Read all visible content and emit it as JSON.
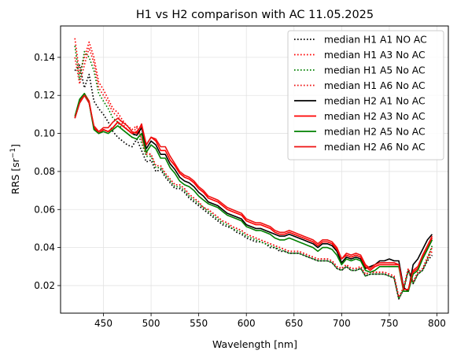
{
  "chart_data": {
    "type": "line",
    "title": "H1 vs H2 comparison with AC 11.05.2025",
    "xlabel": "Wavelength [nm]",
    "ylabel_main": "RRS [sr",
    "ylabel_sup": "−1",
    "ylabel_close": "]",
    "xlim": [
      405,
      812
    ],
    "ylim": [
      0.0055,
      0.1565
    ],
    "xticks": [
      450,
      500,
      550,
      600,
      650,
      700,
      750,
      800
    ],
    "yticks": [
      0.02,
      0.04,
      0.06,
      0.08,
      0.1,
      0.12,
      0.14
    ],
    "ytick_labels": [
      "0.02",
      "0.04",
      "0.06",
      "0.08",
      "0.10",
      "0.12",
      "0.14"
    ],
    "grid": true,
    "legend_position": "top-right",
    "x": [
      420,
      425,
      430,
      435,
      440,
      445,
      450,
      455,
      460,
      465,
      470,
      475,
      480,
      485,
      490,
      495,
      500,
      505,
      510,
      515,
      520,
      525,
      530,
      535,
      540,
      545,
      550,
      555,
      560,
      565,
      570,
      575,
      580,
      585,
      590,
      595,
      600,
      605,
      610,
      615,
      620,
      625,
      630,
      635,
      640,
      645,
      650,
      655,
      660,
      665,
      670,
      675,
      680,
      685,
      690,
      695,
      700,
      705,
      710,
      715,
      720,
      725,
      730,
      735,
      740,
      745,
      750,
      755,
      760,
      765,
      770,
      775,
      780,
      785,
      790,
      795
    ],
    "series": [
      {
        "name": "median H1 A1 NO AC",
        "color": "#000000",
        "dash": "dotted",
        "values": [
          0.133,
          0.136,
          0.124,
          0.131,
          0.117,
          0.113,
          0.11,
          0.106,
          0.101,
          0.098,
          0.096,
          0.094,
          0.093,
          0.097,
          0.091,
          0.085,
          0.086,
          0.08,
          0.081,
          0.077,
          0.074,
          0.071,
          0.071,
          0.069,
          0.066,
          0.064,
          0.062,
          0.06,
          0.058,
          0.056,
          0.054,
          0.052,
          0.051,
          0.05,
          0.048,
          0.047,
          0.045,
          0.044,
          0.043,
          0.043,
          0.042,
          0.04,
          0.04,
          0.038,
          0.038,
          0.037,
          0.037,
          0.037,
          0.036,
          0.035,
          0.034,
          0.033,
          0.033,
          0.033,
          0.032,
          0.029,
          0.028,
          0.03,
          0.028,
          0.028,
          0.029,
          0.025,
          0.026,
          0.026,
          0.026,
          0.026,
          0.025,
          0.024,
          0.013,
          0.018,
          0.028,
          0.021,
          0.026,
          0.028,
          0.033,
          0.036
        ]
      },
      {
        "name": "median H1 A3 No AC",
        "color": "#ff0000",
        "dash": "dotted",
        "values": [
          0.15,
          0.131,
          0.14,
          0.148,
          0.14,
          0.127,
          0.123,
          0.118,
          0.113,
          0.111,
          0.107,
          0.104,
          0.102,
          0.104,
          0.098,
          0.09,
          0.089,
          0.083,
          0.083,
          0.079,
          0.076,
          0.073,
          0.073,
          0.071,
          0.068,
          0.066,
          0.064,
          0.061,
          0.06,
          0.058,
          0.056,
          0.054,
          0.053,
          0.051,
          0.05,
          0.049,
          0.047,
          0.046,
          0.045,
          0.044,
          0.043,
          0.042,
          0.041,
          0.04,
          0.039,
          0.038,
          0.038,
          0.038,
          0.037,
          0.036,
          0.035,
          0.034,
          0.034,
          0.034,
          0.033,
          0.03,
          0.029,
          0.031,
          0.029,
          0.029,
          0.03,
          0.026,
          0.027,
          0.027,
          0.027,
          0.027,
          0.026,
          0.025,
          0.014,
          0.019,
          0.029,
          0.022,
          0.027,
          0.029,
          0.034,
          0.038
        ]
      },
      {
        "name": "median H1 A5 No AC",
        "color": "#008000",
        "dash": "dotted",
        "values": [
          0.146,
          0.128,
          0.143,
          0.14,
          0.133,
          0.121,
          0.117,
          0.113,
          0.108,
          0.106,
          0.102,
          0.1,
          0.098,
          0.101,
          0.095,
          0.088,
          0.088,
          0.082,
          0.082,
          0.078,
          0.075,
          0.072,
          0.072,
          0.07,
          0.067,
          0.065,
          0.063,
          0.061,
          0.059,
          0.057,
          0.055,
          0.053,
          0.052,
          0.05,
          0.049,
          0.048,
          0.046,
          0.045,
          0.044,
          0.043,
          0.042,
          0.041,
          0.04,
          0.039,
          0.038,
          0.037,
          0.037,
          0.037,
          0.036,
          0.035,
          0.034,
          0.033,
          0.033,
          0.033,
          0.032,
          0.029,
          0.028,
          0.03,
          0.028,
          0.028,
          0.029,
          0.025,
          0.026,
          0.026,
          0.026,
          0.026,
          0.025,
          0.024,
          0.013,
          0.018,
          0.028,
          0.021,
          0.026,
          0.028,
          0.034,
          0.041
        ]
      },
      {
        "name": "median H1 A6 No AC",
        "color": "#ee1111",
        "dash": "dotted",
        "values": [
          0.14,
          0.126,
          0.136,
          0.145,
          0.137,
          0.124,
          0.12,
          0.116,
          0.111,
          0.109,
          0.105,
          0.102,
          0.1,
          0.103,
          0.097,
          0.089,
          0.089,
          0.083,
          0.083,
          0.079,
          0.076,
          0.073,
          0.073,
          0.071,
          0.068,
          0.066,
          0.064,
          0.061,
          0.06,
          0.058,
          0.056,
          0.054,
          0.053,
          0.051,
          0.05,
          0.049,
          0.047,
          0.046,
          0.045,
          0.044,
          0.043,
          0.042,
          0.041,
          0.04,
          0.039,
          0.038,
          0.038,
          0.038,
          0.037,
          0.036,
          0.035,
          0.034,
          0.034,
          0.034,
          0.033,
          0.03,
          0.029,
          0.031,
          0.029,
          0.029,
          0.03,
          0.026,
          0.027,
          0.027,
          0.027,
          0.027,
          0.026,
          0.025,
          0.014,
          0.019,
          0.029,
          0.022,
          0.027,
          0.029,
          0.035,
          0.04
        ]
      },
      {
        "name": "median H2 A1 No AC",
        "color": "#000000",
        "dash": "solid",
        "values": [
          0.108,
          0.116,
          0.12,
          0.116,
          0.103,
          0.1,
          0.102,
          0.101,
          0.103,
          0.106,
          0.104,
          0.102,
          0.1,
          0.099,
          0.103,
          0.092,
          0.096,
          0.094,
          0.089,
          0.089,
          0.084,
          0.081,
          0.077,
          0.075,
          0.074,
          0.072,
          0.069,
          0.067,
          0.064,
          0.063,
          0.062,
          0.06,
          0.058,
          0.057,
          0.056,
          0.055,
          0.052,
          0.051,
          0.05,
          0.05,
          0.049,
          0.048,
          0.047,
          0.046,
          0.046,
          0.047,
          0.046,
          0.045,
          0.044,
          0.043,
          0.042,
          0.04,
          0.042,
          0.042,
          0.041,
          0.038,
          0.032,
          0.035,
          0.034,
          0.035,
          0.034,
          0.029,
          0.03,
          0.031,
          0.033,
          0.033,
          0.034,
          0.033,
          0.033,
          0.019,
          0.017,
          0.031,
          0.034,
          0.039,
          0.044,
          0.047
        ]
      },
      {
        "name": "median H2 A3 No AC",
        "color": "#ff0000",
        "dash": "solid",
        "values": [
          0.108,
          0.117,
          0.121,
          0.117,
          0.103,
          0.1,
          0.102,
          0.101,
          0.103,
          0.106,
          0.104,
          0.102,
          0.1,
          0.101,
          0.104,
          0.094,
          0.098,
          0.096,
          0.091,
          0.091,
          0.086,
          0.083,
          0.079,
          0.077,
          0.076,
          0.074,
          0.071,
          0.069,
          0.066,
          0.065,
          0.064,
          0.062,
          0.06,
          0.059,
          0.058,
          0.057,
          0.054,
          0.053,
          0.052,
          0.052,
          0.051,
          0.05,
          0.048,
          0.047,
          0.047,
          0.048,
          0.047,
          0.046,
          0.045,
          0.044,
          0.043,
          0.041,
          0.043,
          0.043,
          0.042,
          0.039,
          0.034,
          0.036,
          0.035,
          0.036,
          0.035,
          0.03,
          0.028,
          0.03,
          0.031,
          0.031,
          0.031,
          0.031,
          0.031,
          0.018,
          0.018,
          0.027,
          0.029,
          0.035,
          0.04,
          0.045
        ]
      },
      {
        "name": "median H2 A5 No AC",
        "color": "#008000",
        "dash": "solid",
        "values": [
          0.109,
          0.118,
          0.121,
          0.116,
          0.102,
          0.1,
          0.101,
          0.1,
          0.102,
          0.104,
          0.102,
          0.1,
          0.098,
          0.097,
          0.1,
          0.09,
          0.094,
          0.092,
          0.087,
          0.087,
          0.082,
          0.079,
          0.075,
          0.073,
          0.072,
          0.07,
          0.067,
          0.065,
          0.063,
          0.062,
          0.061,
          0.059,
          0.057,
          0.056,
          0.055,
          0.054,
          0.051,
          0.05,
          0.049,
          0.049,
          0.048,
          0.047,
          0.045,
          0.044,
          0.044,
          0.045,
          0.044,
          0.043,
          0.042,
          0.041,
          0.04,
          0.038,
          0.04,
          0.04,
          0.039,
          0.036,
          0.031,
          0.034,
          0.033,
          0.034,
          0.033,
          0.028,
          0.027,
          0.028,
          0.03,
          0.03,
          0.03,
          0.03,
          0.03,
          0.017,
          0.017,
          0.026,
          0.028,
          0.034,
          0.039,
          0.044
        ]
      },
      {
        "name": "median H2 A6 No AC",
        "color": "#ee1111",
        "dash": "solid",
        "values": [
          0.108,
          0.116,
          0.12,
          0.116,
          0.104,
          0.101,
          0.103,
          0.103,
          0.106,
          0.108,
          0.106,
          0.104,
          0.101,
          0.1,
          0.105,
          0.094,
          0.098,
          0.097,
          0.093,
          0.093,
          0.088,
          0.084,
          0.08,
          0.078,
          0.077,
          0.075,
          0.072,
          0.07,
          0.067,
          0.066,
          0.065,
          0.063,
          0.061,
          0.06,
          0.059,
          0.058,
          0.055,
          0.054,
          0.053,
          0.053,
          0.052,
          0.051,
          0.049,
          0.048,
          0.048,
          0.049,
          0.048,
          0.047,
          0.046,
          0.045,
          0.044,
          0.042,
          0.044,
          0.044,
          0.043,
          0.04,
          0.034,
          0.037,
          0.036,
          0.037,
          0.036,
          0.031,
          0.029,
          0.031,
          0.032,
          0.032,
          0.032,
          0.032,
          0.031,
          0.018,
          0.018,
          0.028,
          0.03,
          0.036,
          0.041,
          0.046
        ]
      }
    ]
  }
}
